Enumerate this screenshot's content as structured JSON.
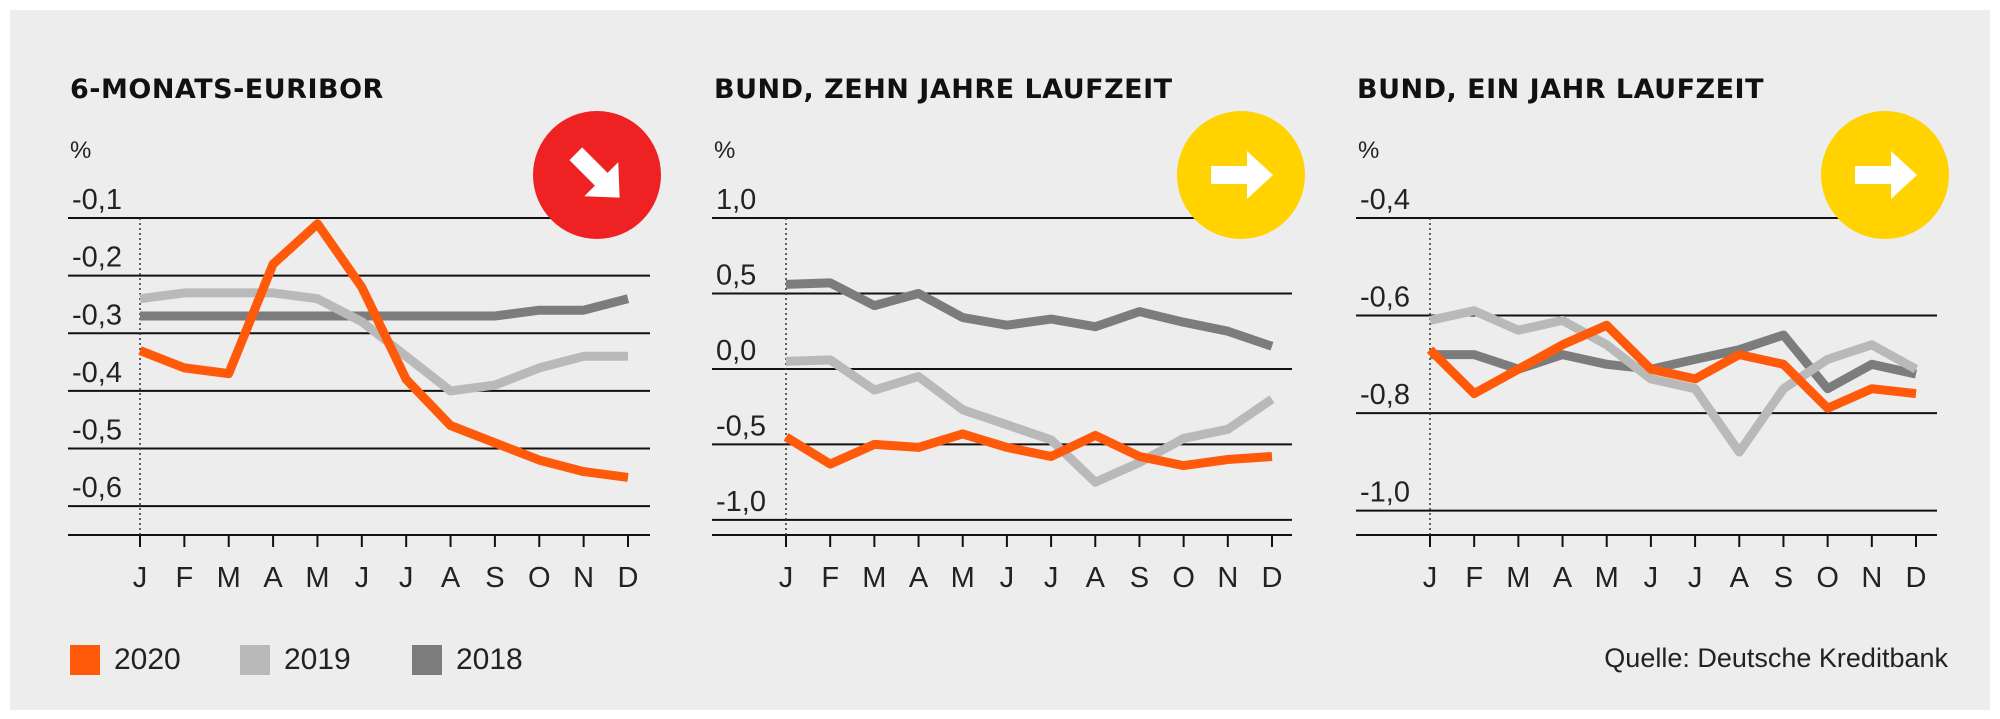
{
  "colors": {
    "s2020": "#ff5a0a",
    "s2019": "#b9b9b9",
    "s2018": "#7c7c7c",
    "down_badge": "#ee2222",
    "flat_badge": "#ffd200"
  },
  "chart_data": [
    {
      "type": "line",
      "title": "6-MONATS-EURIBOR",
      "ylabel": "%",
      "ylim": [
        -0.65,
        -0.1
      ],
      "yticks": [
        -0.1,
        -0.2,
        -0.3,
        -0.4,
        -0.5,
        -0.6
      ],
      "ytick_labels": [
        "-0,1",
        "-0,2",
        "-0,3",
        "-0,4",
        "-0,5",
        "-0,6"
      ],
      "categories": [
        "J",
        "F",
        "M",
        "A",
        "M",
        "J",
        "J",
        "A",
        "S",
        "O",
        "N",
        "D"
      ],
      "trend_icon": "arrow-down-right-icon",
      "series": [
        {
          "name": "2018",
          "values": [
            -0.27,
            -0.27,
            -0.27,
            -0.27,
            -0.27,
            -0.27,
            -0.27,
            -0.27,
            -0.27,
            -0.26,
            -0.26,
            -0.24
          ]
        },
        {
          "name": "2019",
          "values": [
            -0.24,
            -0.23,
            -0.23,
            -0.23,
            -0.24,
            -0.28,
            -0.34,
            -0.4,
            -0.39,
            -0.36,
            -0.34,
            -0.34
          ]
        },
        {
          "name": "2020",
          "values": [
            -0.33,
            -0.36,
            -0.37,
            -0.18,
            -0.11,
            -0.22,
            -0.38,
            -0.46,
            -0.49,
            -0.52,
            -0.54,
            -0.55
          ]
        }
      ]
    },
    {
      "type": "line",
      "title": "BUND, ZEHN JAHRE LAUFZEIT",
      "ylabel": "%",
      "ylim": [
        -1.1,
        1.0
      ],
      "yticks": [
        1.0,
        0.5,
        0.0,
        -0.5,
        -1.0
      ],
      "ytick_labels": [
        "1,0",
        "0,5",
        "0,0",
        "-0,5",
        "-1,0"
      ],
      "categories": [
        "J",
        "F",
        "M",
        "A",
        "M",
        "J",
        "J",
        "A",
        "S",
        "O",
        "N",
        "D"
      ],
      "trend_icon": "arrow-right-icon",
      "series": [
        {
          "name": "2018",
          "values": [
            0.56,
            0.57,
            0.42,
            0.5,
            0.34,
            0.29,
            0.33,
            0.28,
            0.38,
            0.31,
            0.25,
            0.15
          ]
        },
        {
          "name": "2019",
          "values": [
            0.05,
            0.06,
            -0.14,
            -0.05,
            -0.27,
            -0.37,
            -0.47,
            -0.75,
            -0.62,
            -0.46,
            -0.4,
            -0.2
          ]
        },
        {
          "name": "2020",
          "values": [
            -0.45,
            -0.63,
            -0.5,
            -0.52,
            -0.43,
            -0.52,
            -0.58,
            -0.44,
            -0.58,
            -0.64,
            -0.6,
            -0.58
          ]
        }
      ]
    },
    {
      "type": "line",
      "title": "BUND, EIN JAHR LAUFZEIT",
      "ylabel": "%",
      "ylim": [
        -1.05,
        -0.4
      ],
      "yticks": [
        -0.4,
        -0.6,
        -0.8,
        -1.0
      ],
      "ytick_labels": [
        "-0,4",
        "-0,6",
        "-0,8",
        "-1,0"
      ],
      "categories": [
        "J",
        "F",
        "M",
        "A",
        "M",
        "J",
        "J",
        "A",
        "S",
        "O",
        "N",
        "D"
      ],
      "trend_icon": "arrow-right-icon",
      "series": [
        {
          "name": "2018",
          "values": [
            -0.68,
            -0.68,
            -0.71,
            -0.68,
            -0.7,
            -0.71,
            -0.69,
            -0.67,
            -0.64,
            -0.75,
            -0.7,
            -0.72
          ]
        },
        {
          "name": "2019",
          "values": [
            -0.61,
            -0.59,
            -0.63,
            -0.61,
            -0.66,
            -0.73,
            -0.75,
            -0.88,
            -0.75,
            -0.69,
            -0.66,
            -0.71
          ]
        },
        {
          "name": "2020",
          "values": [
            -0.67,
            -0.76,
            -0.71,
            -0.66,
            -0.62,
            -0.71,
            -0.73,
            -0.68,
            -0.7,
            -0.79,
            -0.75,
            -0.76
          ]
        }
      ]
    }
  ],
  "legend": [
    {
      "label": "2020",
      "color": "#ff5a0a"
    },
    {
      "label": "2019",
      "color": "#b9b9b9"
    },
    {
      "label": "2018",
      "color": "#7c7c7c"
    }
  ],
  "source": "Quelle: Deutsche Kreditbank"
}
